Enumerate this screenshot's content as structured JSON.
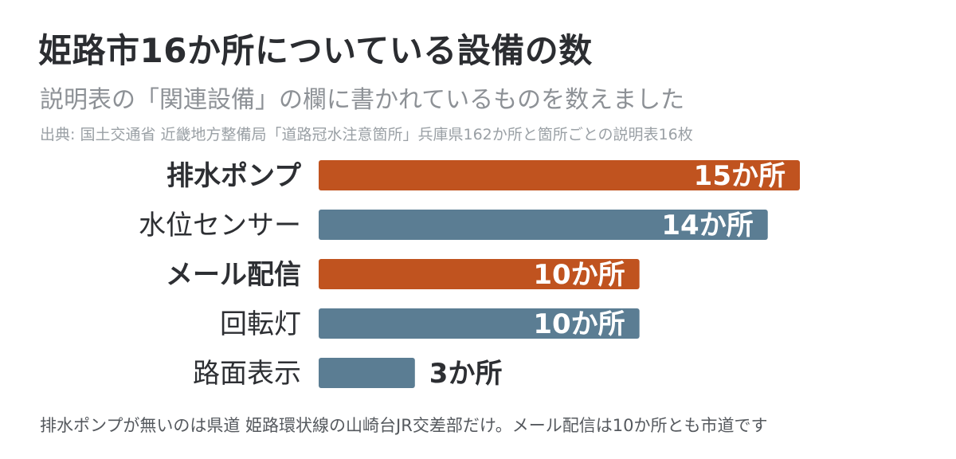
{
  "title": "姫路市16か所についている設備の数",
  "subtitle": "説明表の「関連設備」の欄に書かれているものを数えました",
  "source": "出典: 国土交通省 近畿地方整備局「道路冠水注意箇所」兵庫県162か所と箇所ごとの説明表16枚",
  "footnote": "排水ポンプが無いのは県道 姫路環状線の山崎台JR交差部だけ。メール配信は10か所とも市道です",
  "colors": {
    "highlight": "#c0531f",
    "normal": "#5b7d93",
    "label_inside": "#ffffff",
    "label_outside": "#2d2f33"
  },
  "chart_data": {
    "type": "bar",
    "orientation": "horizontal",
    "categories": [
      "排水ポンプ",
      "水位センサー",
      "メール配信",
      "回転灯",
      "路面表示"
    ],
    "values": [
      15,
      14,
      10,
      10,
      3
    ],
    "value_labels": [
      "15か所",
      "14か所",
      "10か所",
      "10か所",
      "3か所"
    ],
    "highlighted": [
      true,
      false,
      true,
      false,
      false
    ],
    "xlim": [
      0,
      16
    ],
    "grid": false,
    "legend": "none"
  }
}
